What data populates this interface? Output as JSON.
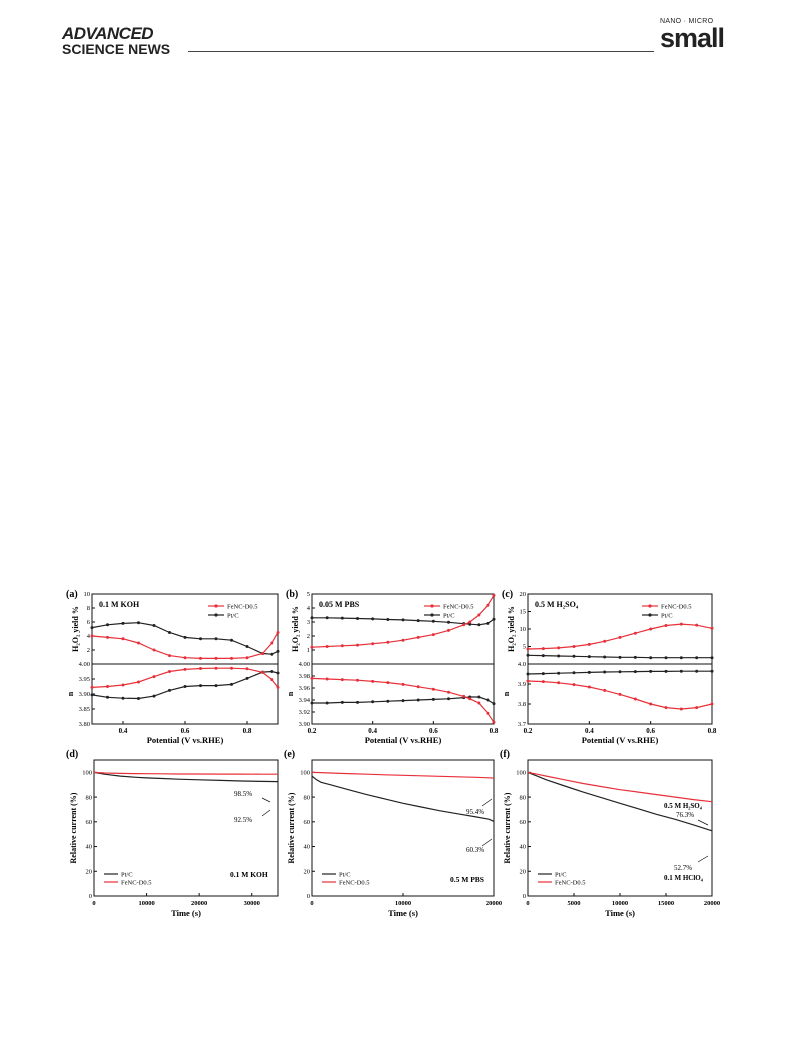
{
  "header": {
    "journal_left_1": "ADVANCED",
    "journal_left_2": "SCIENCE NEWS",
    "journal_right_1": "NANO · MICRO",
    "journal_right_2": "small"
  },
  "colors": {
    "ptc": "#222222",
    "fenc": "#e8303a"
  },
  "panels_top": [
    {
      "label": "(a)",
      "condition": "0.1 M KOH",
      "xlabel": "Potential (V vs.RHE)",
      "xlim": [
        0.3,
        0.9
      ],
      "xticks": [
        "0.4",
        "0.6",
        "0.8"
      ],
      "top": {
        "ylabel": "H2O2 yield %",
        "ylim": [
          0,
          10
        ],
        "yticks": [
          "2",
          "4",
          "6",
          "8",
          "10"
        ]
      },
      "bottom": {
        "ylabel": "n",
        "ylim": [
          3.8,
          4.0
        ],
        "yticks": [
          "3.80",
          "3.85",
          "3.90",
          "3.95",
          "4.00"
        ]
      },
      "legend": [
        "FeNC-D0.5",
        "Pt/C"
      ]
    },
    {
      "label": "(b)",
      "condition": "0.05 M PBS",
      "xlabel": "Potential (V vs.RHE)",
      "xlim": [
        0.2,
        0.8
      ],
      "xticks": [
        "0.2",
        "0.4",
        "0.6",
        "0.8"
      ],
      "top": {
        "ylabel": "H2O2 yield %",
        "ylim": [
          0,
          5
        ],
        "yticks": [
          "1",
          "2",
          "3",
          "4",
          "5"
        ]
      },
      "bottom": {
        "ylabel": "n",
        "ylim": [
          3.9,
          4.0
        ],
        "yticks": [
          "3.90",
          "3.92",
          "3.94",
          "3.96",
          "3.98",
          "4.00"
        ]
      },
      "legend": [
        "FeNC-D0.5",
        "Pt/C"
      ]
    },
    {
      "label": "(c)",
      "condition": "0.5 M H2SO4",
      "xlabel": "Potential (V vs.RHE)",
      "xlim": [
        0.2,
        0.8
      ],
      "xticks": [
        "0.2",
        "0.4",
        "0.6",
        "0.8"
      ],
      "top": {
        "ylabel": "H2O2 yield %",
        "ylim": [
          0,
          20
        ],
        "yticks": [
          "5",
          "10",
          "15",
          "20"
        ]
      },
      "bottom": {
        "ylabel": "n",
        "ylim": [
          3.7,
          4.0
        ],
        "yticks": [
          "3.7",
          "3.8",
          "3.9",
          "4.0"
        ]
      },
      "legend": [
        "FeNC-D0.5",
        "Pt/C"
      ]
    }
  ],
  "panels_bottom": [
    {
      "label": "(d)",
      "xlabel": "Time (s)",
      "ylabel": "Relative current (%)",
      "xlim": [
        0,
        35000
      ],
      "xticks": [
        "0",
        "10000",
        "20000",
        "30000"
      ],
      "ylim": [
        0,
        110
      ],
      "yticks": [
        "0",
        "20",
        "40",
        "60",
        "80",
        "100"
      ],
      "legend": [
        "Pt/C",
        "FeNC-D0.5"
      ],
      "condition": "0.1 M KOH",
      "annotations": [
        "98.5%",
        "92.5%"
      ]
    },
    {
      "label": "(e)",
      "xlabel": "Time (s)",
      "ylabel": "Relative current (%)",
      "xlim": [
        0,
        20000
      ],
      "xticks": [
        "0",
        "10000",
        "20000"
      ],
      "ylim": [
        0,
        110
      ],
      "yticks": [
        "0",
        "20",
        "40",
        "60",
        "80",
        "100"
      ],
      "legend": [
        "Pt/C",
        "FeNC-D0.5"
      ],
      "condition": "0.5 M PBS",
      "annotations": [
        "95.4%",
        "60.3%"
      ]
    },
    {
      "label": "(f)",
      "xlabel": "Time (s)",
      "ylabel": "Relative current (%)",
      "xlim": [
        0,
        20000
      ],
      "xticks": [
        "0",
        "5000",
        "10000",
        "15000",
        "20000"
      ],
      "ylim": [
        0,
        110
      ],
      "yticks": [
        "0",
        "20",
        "40",
        "60",
        "80",
        "100"
      ],
      "legend": [
        "Pt/C",
        "FeNC-D0.5"
      ],
      "annotations": [
        "0.5 M H2SO4",
        "76.3%",
        "52.7%",
        "0.1 M HClO4"
      ]
    }
  ],
  "chart_data": [
    {
      "type": "line",
      "panel": "a-top",
      "x": [
        0.3,
        0.35,
        0.4,
        0.45,
        0.5,
        0.55,
        0.6,
        0.65,
        0.7,
        0.75,
        0.8,
        0.85,
        0.88,
        0.9
      ],
      "series": [
        {
          "name": "FeNC-D0.5",
          "values": [
            4.0,
            3.8,
            3.6,
            3.0,
            2.0,
            1.2,
            0.9,
            0.8,
            0.8,
            0.8,
            0.9,
            1.5,
            3.0,
            4.5
          ]
        },
        {
          "name": "Pt/C",
          "values": [
            5.2,
            5.6,
            5.8,
            5.9,
            5.5,
            4.5,
            3.8,
            3.6,
            3.6,
            3.4,
            2.5,
            1.5,
            1.4,
            1.8
          ]
        }
      ]
    },
    {
      "type": "line",
      "panel": "a-bottom",
      "x": [
        0.3,
        0.35,
        0.4,
        0.45,
        0.5,
        0.55,
        0.6,
        0.65,
        0.7,
        0.75,
        0.8,
        0.85,
        0.88,
        0.9
      ],
      "series": [
        {
          "name": "FeNC-D0.5",
          "values": [
            3.922,
            3.925,
            3.93,
            3.94,
            3.958,
            3.975,
            3.982,
            3.985,
            3.986,
            3.986,
            3.984,
            3.972,
            3.948,
            3.922
          ]
        },
        {
          "name": "Pt/C",
          "values": [
            3.897,
            3.889,
            3.886,
            3.885,
            3.893,
            3.912,
            3.925,
            3.928,
            3.928,
            3.932,
            3.952,
            3.973,
            3.975,
            3.97
          ]
        }
      ]
    },
    {
      "type": "line",
      "panel": "b-top",
      "x": [
        0.2,
        0.25,
        0.3,
        0.35,
        0.4,
        0.45,
        0.5,
        0.55,
        0.6,
        0.65,
        0.7,
        0.72,
        0.75,
        0.78,
        0.8
      ],
      "series": [
        {
          "name": "FeNC-D0.5",
          "values": [
            1.2,
            1.25,
            1.3,
            1.35,
            1.45,
            1.55,
            1.7,
            1.9,
            2.1,
            2.4,
            2.8,
            3.0,
            3.5,
            4.2,
            4.9
          ]
        },
        {
          "name": "Pt/C",
          "values": [
            3.3,
            3.3,
            3.28,
            3.25,
            3.22,
            3.18,
            3.15,
            3.1,
            3.05,
            2.98,
            2.88,
            2.84,
            2.8,
            2.9,
            3.2
          ]
        }
      ]
    },
    {
      "type": "line",
      "panel": "b-bottom",
      "x": [
        0.2,
        0.25,
        0.3,
        0.35,
        0.4,
        0.45,
        0.5,
        0.55,
        0.6,
        0.65,
        0.7,
        0.72,
        0.75,
        0.78,
        0.8
      ],
      "series": [
        {
          "name": "FeNC-D0.5",
          "values": [
            3.976,
            3.975,
            3.974,
            3.973,
            3.971,
            3.969,
            3.966,
            3.962,
            3.958,
            3.953,
            3.946,
            3.942,
            3.935,
            3.918,
            3.903
          ]
        },
        {
          "name": "Pt/C",
          "values": [
            3.935,
            3.935,
            3.936,
            3.936,
            3.937,
            3.938,
            3.939,
            3.94,
            3.941,
            3.942,
            3.944,
            3.945,
            3.945,
            3.94,
            3.934
          ]
        }
      ]
    },
    {
      "type": "line",
      "panel": "c-top",
      "x": [
        0.2,
        0.25,
        0.3,
        0.35,
        0.4,
        0.45,
        0.5,
        0.55,
        0.6,
        0.65,
        0.7,
        0.75,
        0.8
      ],
      "series": [
        {
          "name": "FeNC-D0.5",
          "values": [
            4.3,
            4.4,
            4.6,
            5.0,
            5.6,
            6.5,
            7.6,
            8.8,
            10.0,
            11.0,
            11.4,
            11.1,
            10.2
          ]
        },
        {
          "name": "Pt/C",
          "values": [
            2.5,
            2.4,
            2.3,
            2.2,
            2.1,
            2.0,
            1.9,
            1.9,
            1.8,
            1.8,
            1.8,
            1.8,
            1.8
          ]
        }
      ]
    },
    {
      "type": "line",
      "panel": "c-bottom",
      "x": [
        0.2,
        0.25,
        0.3,
        0.35,
        0.4,
        0.45,
        0.5,
        0.55,
        0.6,
        0.65,
        0.7,
        0.75,
        0.8
      ],
      "series": [
        {
          "name": "FeNC-D0.5",
          "values": [
            3.915,
            3.912,
            3.906,
            3.897,
            3.885,
            3.868,
            3.848,
            3.825,
            3.8,
            3.782,
            3.775,
            3.782,
            3.8
          ]
        },
        {
          "name": "Pt/C",
          "values": [
            3.95,
            3.952,
            3.954,
            3.956,
            3.958,
            3.96,
            3.961,
            3.962,
            3.963,
            3.963,
            3.964,
            3.964,
            3.964
          ]
        }
      ]
    },
    {
      "type": "line",
      "panel": "d",
      "x": [
        0,
        2000,
        5000,
        8000,
        10000,
        13000,
        16000,
        20000,
        24000,
        28000,
        32000,
        35000
      ],
      "series": [
        {
          "name": "Pt/C",
          "values": [
            100,
            98.5,
            97,
            96,
            95.5,
            95,
            94.5,
            94,
            93.5,
            93,
            92.7,
            92.5
          ]
        },
        {
          "name": "FeNC-D0.5",
          "values": [
            100,
            99.5,
            99.2,
            99,
            98.9,
            98.8,
            98.7,
            98.7,
            98.6,
            98.6,
            98.5,
            98.5
          ]
        }
      ]
    },
    {
      "type": "line",
      "panel": "e",
      "x": [
        0,
        500,
        1000,
        2000,
        4000,
        6000,
        8000,
        10000,
        12000,
        14000,
        16000,
        18000,
        19500,
        20000
      ],
      "series": [
        {
          "name": "Pt/C",
          "values": [
            97,
            94,
            92,
            90,
            86,
            82,
            78.5,
            75,
            72,
            69,
            66.5,
            64,
            62,
            60.3
          ]
        },
        {
          "name": "FeNC-D0.5",
          "values": [
            100,
            99.9,
            99.8,
            99.5,
            99,
            98.5,
            98,
            97.6,
            97.2,
            96.8,
            96.4,
            96,
            95.6,
            95.4
          ]
        }
      ]
    },
    {
      "type": "line",
      "panel": "f",
      "x": [
        0,
        1000,
        2000,
        4000,
        6000,
        8000,
        10000,
        12000,
        14000,
        16000,
        18000,
        20000
      ],
      "series": [
        {
          "name": "Pt/C",
          "values": [
            100,
            97,
            94,
            89,
            84,
            79.5,
            75,
            70.5,
            66,
            62,
            57.5,
            52.7
          ]
        },
        {
          "name": "FeNC-D0.5",
          "values": [
            100,
            98.5,
            97,
            94,
            91,
            88.5,
            86,
            84,
            82,
            80,
            78,
            76.3
          ]
        }
      ]
    }
  ]
}
